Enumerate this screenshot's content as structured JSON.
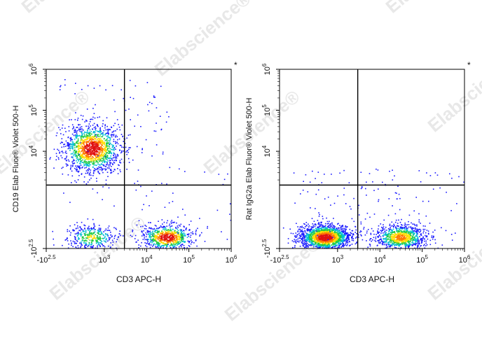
{
  "watermark": "Elabscience®",
  "colors": {
    "density_low": "#1a1aff",
    "density_mid": "#22cc44",
    "density_high": "#ffdd00",
    "density_peak": "#e01010",
    "gate_line": "#000000"
  },
  "chart_data": [
    {
      "type": "scatter",
      "subtype": "flow-cytometry-density-dot-plot",
      "xlabel": "CD3 APC-H",
      "ylabel": "CD19 Elab Fluor® Violet 500-H",
      "x_scale": "biexponential",
      "y_scale": "biexponential",
      "x_ticks": [
        {
          "base": "-10",
          "exp": "2.5",
          "value": -316
        },
        {
          "base": "10",
          "exp": "3",
          "value": 1000
        },
        {
          "base": "10",
          "exp": "4",
          "value": 10000
        },
        {
          "base": "10",
          "exp": "5",
          "value": 100000
        },
        {
          "base": "10",
          "exp": "6",
          "value": 1000000
        }
      ],
      "y_ticks": [
        {
          "base": "-10",
          "exp": "2.5",
          "value": -316
        },
        {
          "base": "10",
          "exp": "4",
          "value": 10000
        },
        {
          "base": "10",
          "exp": "5",
          "value": 100000
        },
        {
          "base": "10",
          "exp": "6",
          "value": 1000000
        }
      ],
      "gate": {
        "x": 3000,
        "y": 1500
      },
      "marker": "*",
      "populations": [
        {
          "center_x": 500,
          "center_y": 12000,
          "relative_size": 0.55,
          "peak": "high"
        },
        {
          "center_x": 500,
          "center_y": 0,
          "relative_size": 0.15,
          "peak": "low"
        },
        {
          "center_x": 30000,
          "center_y": 0,
          "relative_size": 0.3,
          "peak": "high"
        }
      ]
    },
    {
      "type": "scatter",
      "subtype": "flow-cytometry-density-dot-plot",
      "xlabel": "CD3 APC-H",
      "ylabel": "Rat IgG2a Elab Fluor® Violet 500-H",
      "x_scale": "biexponential",
      "y_scale": "biexponential",
      "x_ticks": [
        {
          "base": "-10",
          "exp": "2.5",
          "value": -316
        },
        {
          "base": "10",
          "exp": "3",
          "value": 1000
        },
        {
          "base": "10",
          "exp": "4",
          "value": 10000
        },
        {
          "base": "10",
          "exp": "5",
          "value": 100000
        },
        {
          "base": "10",
          "exp": "6",
          "value": 1000000
        }
      ],
      "y_ticks": [
        {
          "base": "-10",
          "exp": "2.5",
          "value": -316
        },
        {
          "base": "10",
          "exp": "4",
          "value": 10000
        },
        {
          "base": "10",
          "exp": "5",
          "value": 100000
        },
        {
          "base": "10",
          "exp": "6",
          "value": 1000000
        }
      ],
      "gate": {
        "x": 3000,
        "y": 1500
      },
      "marker": "*",
      "populations": [
        {
          "center_x": 500,
          "center_y": 0,
          "relative_size": 0.65,
          "peak": "high"
        },
        {
          "center_x": 30000,
          "center_y": 0,
          "relative_size": 0.35,
          "peak": "mid"
        }
      ]
    }
  ]
}
